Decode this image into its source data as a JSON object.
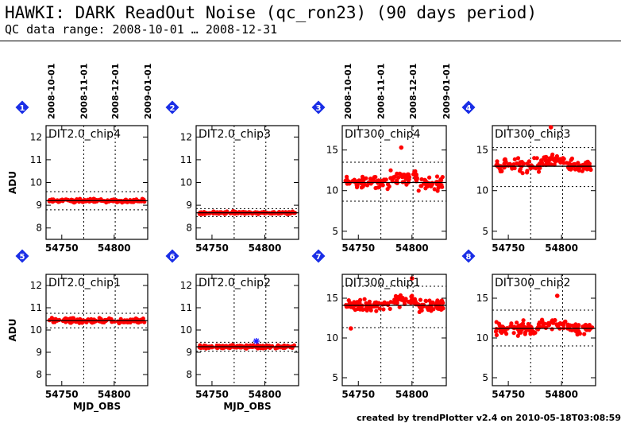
{
  "header": {
    "title": "HAWKI: DARK ReadOut Noise (qc_ron23) (90 days period)",
    "subtitle": "QC data range: 2008-10-01 … 2008-12-31"
  },
  "footer": {
    "credit": "created by trendPlotter v2.4 on 2010-05-18T03:08:59"
  },
  "colors": {
    "points": "#ff0000",
    "badge": "#1a2ee6",
    "outlier": "#2222ff"
  },
  "chart_data": [
    {
      "type": "scatter",
      "panel": "1",
      "label": "DIT2.0_chip4",
      "x_ticks": [
        54750,
        54800
      ],
      "y_ticks": [
        8,
        9,
        10,
        11,
        12
      ],
      "ylim": [
        7.5,
        12.5
      ],
      "mean": 9.2,
      "band": [
        8.8,
        9.6
      ],
      "ylabel": "ADU",
      "xlabel": "",
      "date_ticks": [
        "2008-10-01",
        "2008-11-01",
        "2008-12-01",
        "2009-01-01"
      ],
      "mjd_range": [
        54735,
        54832
      ],
      "noise": 0.07,
      "outliers": [],
      "ymarks": []
    },
    {
      "type": "scatter",
      "panel": "2",
      "label": "DIT2.0_chip3",
      "x_ticks": [
        54750,
        54800
      ],
      "y_ticks": [
        8,
        9,
        10,
        11,
        12
      ],
      "ylim": [
        7.5,
        12.5
      ],
      "mean": 8.67,
      "band": [
        8.5,
        8.85
      ],
      "ylabel": "",
      "xlabel": "",
      "date_ticks": [],
      "mjd_range": [
        54735,
        54832
      ],
      "noise": 0.05,
      "outliers": [],
      "ymarks": []
    },
    {
      "type": "scatter",
      "panel": "3",
      "label": "DIT300_chip4",
      "x_ticks": [
        54750,
        54800
      ],
      "y_ticks": [
        5,
        10,
        15
      ],
      "ylim": [
        4,
        18
      ],
      "mean": 11,
      "band": [
        8.7,
        13.5
      ],
      "ylabel": "",
      "xlabel": "",
      "date_ticks": [
        "2008-10-01",
        "2008-11-01",
        "2008-12-01",
        "2009-01-01"
      ],
      "mjd_range": [
        54735,
        54832
      ],
      "noise": 0.8,
      "outliers": [
        [
          54790,
          15.3
        ]
      ],
      "ymarks": []
    },
    {
      "type": "scatter",
      "panel": "4",
      "label": "DIT300_chip3",
      "x_ticks": [
        54750,
        54800
      ],
      "y_ticks": [
        5,
        10,
        15
      ],
      "ylim": [
        4,
        18
      ],
      "mean": 13,
      "band": [
        10.5,
        15.3
      ],
      "ylabel": "",
      "xlabel": "",
      "date_ticks": [],
      "mjd_range": [
        54735,
        54832
      ],
      "noise": 0.8,
      "outliers": [
        [
          54790,
          17.8
        ]
      ],
      "ymarks": []
    },
    {
      "type": "scatter",
      "panel": "5",
      "label": "DIT2.0_chip1",
      "x_ticks": [
        54750,
        54800
      ],
      "y_ticks": [
        8,
        9,
        10,
        11,
        12
      ],
      "ylim": [
        7.5,
        12.5
      ],
      "mean": 10.42,
      "band": [
        10.1,
        10.75
      ],
      "ylabel": "ADU",
      "xlabel": "MJD_OBS",
      "date_ticks": [],
      "mjd_range": [
        54735,
        54832
      ],
      "noise": 0.1,
      "outliers": [],
      "ymarks": []
    },
    {
      "type": "scatter",
      "panel": "6",
      "label": "DIT2.0_chip2",
      "x_ticks": [
        54750,
        54800
      ],
      "y_ticks": [
        8,
        9,
        10,
        11,
        12
      ],
      "ylim": [
        7.5,
        12.5
      ],
      "mean": 9.25,
      "band": [
        9.05,
        9.45
      ],
      "ylabel": "",
      "xlabel": "MJD_OBS",
      "date_ticks": [],
      "mjd_range": [
        54735,
        54832
      ],
      "noise": 0.07,
      "outliers": [],
      "ymarks": [
        [
          54792,
          9.5
        ]
      ]
    },
    {
      "type": "scatter",
      "panel": "7",
      "label": "DIT300_chip1",
      "x_ticks": [
        54750,
        54800
      ],
      "y_ticks": [
        5,
        10,
        15
      ],
      "ylim": [
        4,
        18
      ],
      "mean": 14.1,
      "band": [
        11.3,
        16.5
      ],
      "ylabel": "",
      "xlabel": "",
      "date_ticks": [],
      "mjd_range": [
        54735,
        54832
      ],
      "noise": 0.8,
      "outliers": [
        [
          54800,
          17.5
        ],
        [
          54743,
          11.2
        ]
      ],
      "ymarks": []
    },
    {
      "type": "scatter",
      "panel": "8",
      "label": "DIT300_chip2",
      "x_ticks": [
        54750,
        54800
      ],
      "y_ticks": [
        5,
        10,
        15
      ],
      "ylim": [
        4,
        18
      ],
      "mean": 11.2,
      "band": [
        9,
        13.5
      ],
      "ylabel": "",
      "xlabel": "",
      "date_ticks": [],
      "mjd_range": [
        54735,
        54832
      ],
      "noise": 0.7,
      "outliers": [
        [
          54796,
          15.3
        ]
      ],
      "ymarks": []
    }
  ]
}
